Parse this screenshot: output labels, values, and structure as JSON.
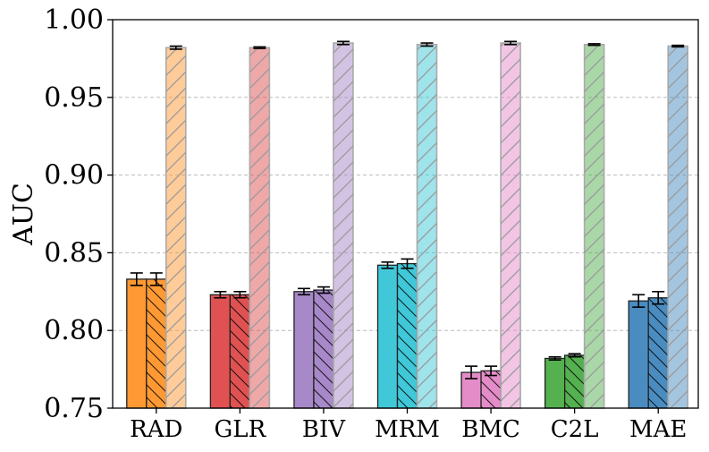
{
  "chart_data": {
    "type": "bar",
    "title": "",
    "xlabel": "",
    "ylabel": "AUC",
    "ylim": [
      0.75,
      1.0
    ],
    "yticks": [
      "0.75",
      "0.80",
      "0.85",
      "0.90",
      "0.95",
      "1.00"
    ],
    "ytick_values": [
      0.75,
      0.8,
      0.85,
      0.9,
      0.95,
      1.0
    ],
    "grid": "y-dashed",
    "legend": "none",
    "categories": [
      "RAD",
      "GLR",
      "BIV",
      "MRM",
      "BMC",
      "C2L",
      "MAE"
    ],
    "colors": [
      "#ff9933",
      "#e05252",
      "#a788c8",
      "#40c8d8",
      "#e48cc8",
      "#55b050",
      "#4a8cc0"
    ],
    "series": [
      {
        "pattern": "solid",
        "values": [
          0.833,
          0.823,
          0.825,
          0.842,
          0.773,
          0.782,
          0.819
        ],
        "errors": [
          0.004,
          0.002,
          0.002,
          0.002,
          0.004,
          0.001,
          0.004
        ]
      },
      {
        "pattern": "back-hatch",
        "values": [
          0.833,
          0.823,
          0.826,
          0.843,
          0.774,
          0.784,
          0.821
        ],
        "errors": [
          0.004,
          0.002,
          0.002,
          0.003,
          0.003,
          0.001,
          0.004
        ]
      },
      {
        "pattern": "forward-hatch-faded",
        "values": [
          0.982,
          0.982,
          0.985,
          0.984,
          0.985,
          0.984,
          0.983
        ],
        "errors": [
          0.001,
          0.0005,
          0.001,
          0.001,
          0.001,
          0.0005,
          0.0005
        ]
      }
    ]
  }
}
